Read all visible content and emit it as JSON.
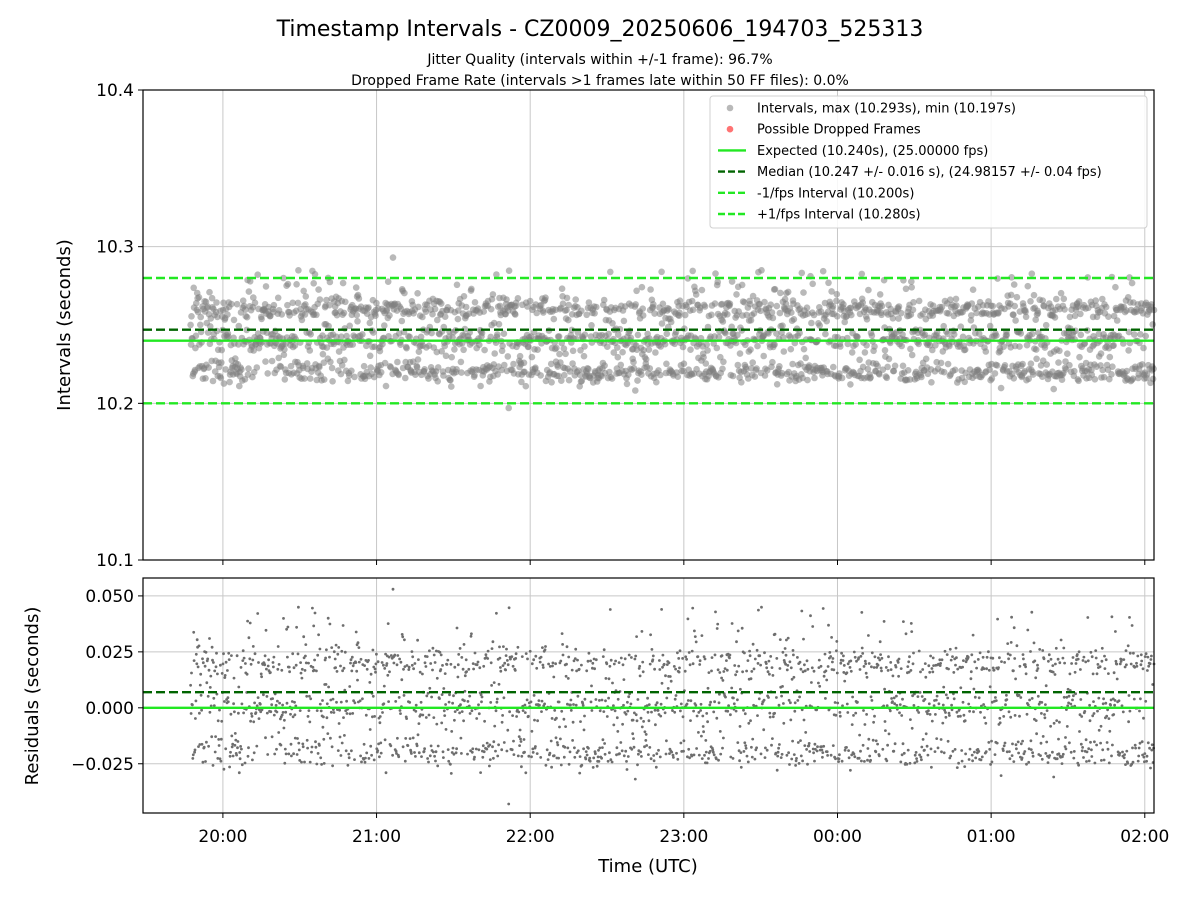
{
  "title": "Timestamp Intervals - CZ0009_20250606_194703_525313",
  "subtitle1": "Jitter Quality (intervals within +/-1 frame): 96.7%",
  "subtitle2": "Dropped Frame Rate (intervals >1 frames late within 50 FF files): 0.0%",
  "colors": {
    "points": "#808080",
    "dropped": "#ff0000",
    "expected": "#22e822",
    "median": "#006400",
    "bounds": "#22e822",
    "grid": "#c8c8c8"
  },
  "chart_data": [
    {
      "type": "scatter",
      "name": "intervals",
      "ylabel": "Intervals (seconds)",
      "ylim": [
        10.1,
        10.4
      ],
      "yticks": [
        10.1,
        10.2,
        10.3,
        10.4
      ],
      "ytick_labels": [
        "10.1",
        "10.2",
        "10.3",
        "10.4"
      ],
      "xlim_hours": [
        19.48,
        26.06
      ],
      "xticks_hours": [
        20,
        21,
        22,
        23,
        24,
        25,
        26
      ],
      "data_x_range_hours": [
        19.79,
        26.06
      ],
      "n_points": 2200,
      "max_interval": 10.293,
      "min_interval": 10.197,
      "expected": 10.24,
      "median": 10.247,
      "lower_bound": 10.2,
      "upper_bound": 10.28,
      "legend_position": "top-right",
      "legend": [
        {
          "label": "Intervals, max (10.293s), min (10.197s)",
          "kind": "point-gray"
        },
        {
          "label": "Possible Dropped Frames",
          "kind": "point-red"
        },
        {
          "label": "Expected (10.240s), (25.00000 fps)",
          "kind": "line-solid"
        },
        {
          "label": "Median (10.247 +/- 0.016 s), (24.98157 +/- 0.04 fps)",
          "kind": "line-dashed-dark"
        },
        {
          "label": "-1/fps Interval (10.200s)",
          "kind": "line-dashed"
        },
        {
          "label": "+1/fps Interval (10.280s)",
          "kind": "line-dashed"
        }
      ]
    },
    {
      "type": "scatter",
      "name": "residuals",
      "ylabel": "Residuals (seconds)",
      "xlabel": "Time (UTC)",
      "ylim": [
        -0.047,
        0.058
      ],
      "yticks": [
        -0.025,
        0.0,
        0.025,
        0.05
      ],
      "ytick_labels": [
        "−0.025",
        "0.000",
        "0.025",
        "0.050"
      ],
      "xtick_labels": [
        "20:00",
        "21:00",
        "22:00",
        "23:00",
        "00:00",
        "01:00",
        "02:00"
      ],
      "zero_line": 0.0,
      "median_residual": 0.007
    }
  ]
}
